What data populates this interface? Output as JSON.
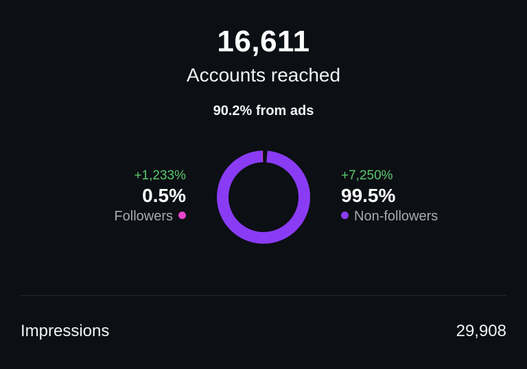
{
  "reach": {
    "count": "16,611",
    "label": "Accounts reached",
    "ads_note": "90.2% from ads"
  },
  "followers": {
    "change": "+1,233%",
    "percent": "0.5%",
    "label": "Followers",
    "fraction": 0.005,
    "color": "#e545c9"
  },
  "non_followers": {
    "change": "+7,250%",
    "percent": "99.5%",
    "label": "Non-followers",
    "fraction": 0.995,
    "color": "#8a3cf5"
  },
  "impressions": {
    "label": "Impressions",
    "value": "29,908"
  },
  "colors": {
    "background": "#0c0f14",
    "positive_change": "#5ac96d",
    "muted_text": "#a6abb3",
    "divider": "#262a31"
  }
}
